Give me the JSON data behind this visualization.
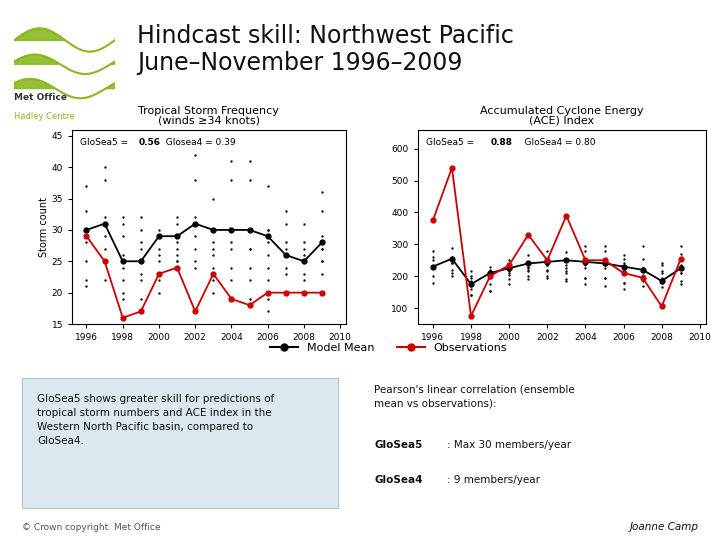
{
  "title_line1": "Hindcast skill: Northwest Pacific",
  "title_line2": "June–November 1996–2009",
  "bg_color": "#ffffff",
  "left_chart": {
    "title_line1": "Tropical Storm Frequency",
    "title_line2": "(winds ≥34 knots)",
    "ylabel": "Storm count",
    "ylim": [
      15,
      46
    ],
    "yticks": [
      15,
      20,
      25,
      30,
      35,
      40,
      45
    ],
    "xlim": [
      1995.2,
      2010.3
    ],
    "xticks": [
      1996,
      1998,
      2000,
      2002,
      2004,
      2006,
      2008,
      2010
    ],
    "model_mean": [
      30,
      31,
      25,
      25,
      29,
      29,
      31,
      30,
      30,
      30,
      29,
      26,
      25,
      28
    ],
    "obs": [
      29,
      25,
      16,
      17,
      23,
      24,
      17,
      23,
      19,
      18,
      20,
      20,
      20,
      20
    ],
    "ensemble": [
      [
        22,
        30,
        37,
        25,
        21,
        28,
        33
      ],
      [
        22,
        31,
        38,
        40,
        25,
        32,
        27,
        29
      ],
      [
        20,
        25,
        29,
        32,
        22,
        26,
        24,
        19,
        31
      ],
      [
        23,
        28,
        30,
        32,
        25,
        27,
        22,
        19
      ],
      [
        22,
        25,
        29,
        30,
        27,
        20,
        26,
        23
      ],
      [
        25,
        29,
        31,
        32,
        26,
        28,
        25,
        27
      ],
      [
        25,
        31,
        38,
        42,
        32,
        27,
        24,
        29
      ],
      [
        22,
        28,
        30,
        35,
        27,
        24,
        20,
        26
      ],
      [
        22,
        28,
        30,
        38,
        41,
        30,
        27,
        24,
        19
      ],
      [
        22,
        27,
        30,
        38,
        41,
        30,
        27,
        24,
        19
      ],
      [
        22,
        28,
        30,
        37,
        30,
        26,
        24,
        19,
        17
      ],
      [
        20,
        24,
        27,
        31,
        26,
        23,
        20,
        28,
        33
      ],
      [
        20,
        22,
        25,
        27,
        31,
        26,
        23,
        28
      ],
      [
        20,
        25,
        27,
        29,
        33,
        36,
        27,
        25,
        23
      ]
    ]
  },
  "right_chart": {
    "title_line1": "Accumulated Cyclone Energy",
    "title_line2": "(ACE) Index",
    "ylim": [
      50,
      660
    ],
    "yticks": [
      100,
      200,
      300,
      400,
      500,
      600
    ],
    "xlim": [
      1995.2,
      2010.3
    ],
    "xticks": [
      1996,
      1998,
      2000,
      2002,
      2004,
      2006,
      2008,
      2010
    ],
    "model_mean": [
      230,
      255,
      175,
      210,
      225,
      240,
      245,
      250,
      245,
      240,
      230,
      220,
      185,
      225
    ],
    "obs": [
      375,
      540,
      75,
      200,
      235,
      330,
      250,
      390,
      250,
      250,
      210,
      195,
      105,
      255
    ],
    "ensemble": [
      [
        180,
        225,
        250,
        280,
        200,
        230,
        260
      ],
      [
        200,
        240,
        260,
        290,
        220,
        250,
        210,
        240
      ],
      [
        140,
        170,
        195,
        215,
        185,
        200,
        160,
        140,
        175
      ],
      [
        155,
        195,
        215,
        230,
        200,
        220,
        175,
        155
      ],
      [
        175,
        210,
        230,
        250,
        215,
        190,
        205,
        220
      ],
      [
        190,
        220,
        240,
        265,
        225,
        215,
        200,
        230
      ],
      [
        200,
        235,
        255,
        280,
        235,
        215,
        195,
        220
      ],
      [
        185,
        225,
        250,
        275,
        235,
        210,
        190,
        215
      ],
      [
        195,
        235,
        255,
        280,
        295,
        250,
        225,
        195,
        175
      ],
      [
        195,
        235,
        250,
        280,
        295,
        245,
        225,
        195,
        170
      ],
      [
        180,
        220,
        240,
        265,
        255,
        230,
        210,
        180,
        160
      ],
      [
        170,
        205,
        225,
        255,
        225,
        200,
        185,
        215,
        295
      ],
      [
        165,
        190,
        210,
        235,
        215,
        195,
        180,
        240
      ],
      [
        175,
        210,
        230,
        255,
        270,
        295,
        235,
        210,
        185
      ]
    ]
  },
  "scatter_color": "#111111",
  "obs_line_color": "#cc0000",
  "model_line_color": "#000000",
  "text_box_left": "GloSea5 shows greater skill for predictions of\ntropical storm numbers and ACE index in the\nWestern North Pacific basin, compared to\nGloSea4.",
  "copyright_text": "© Crown copyright  Met Office",
  "author_text": "Joanne Camp",
  "wave_color": "#8ab820"
}
